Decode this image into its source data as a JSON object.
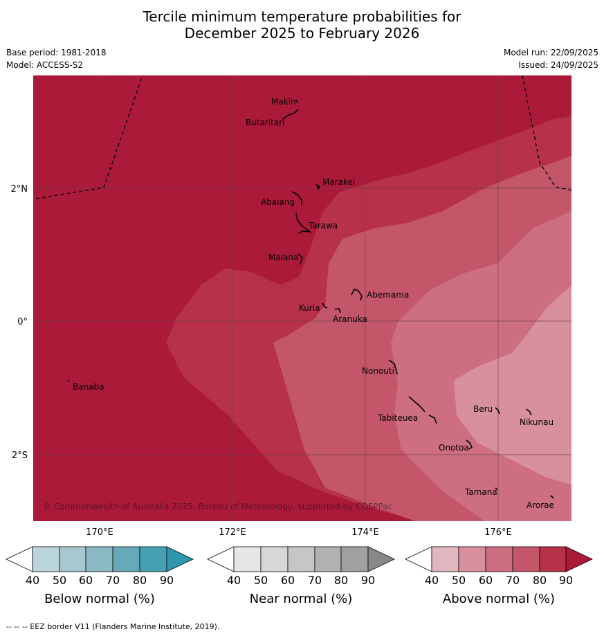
{
  "title": {
    "line1": "Tercile minimum temperature probabilities for",
    "line2": "December 2025 to February 2026"
  },
  "meta": {
    "base_period": "Base period: 1981-2018",
    "model": "Model: ACCESS-S2",
    "model_run": "Model run: 22/09/2025",
    "issued": "Issued: 24/09/2025"
  },
  "colors": {
    "above": [
      "#e2b6bf",
      "#d8909f",
      "#cd6f81",
      "#c35668",
      "#b63149",
      "#ac1a3a"
    ],
    "below": [
      "#bcd5dc",
      "#a7c8d0",
      "#8ab9c4",
      "#66a9b8",
      "#45a0b3",
      "#2d97ac"
    ],
    "near": [
      "#e6e6e6",
      "#d7d7d7",
      "#c6c6c6",
      "#b2b2b2",
      "#a0a0a0",
      "#888888"
    ],
    "land": "#000000",
    "grid": "#6b4045"
  },
  "map": {
    "lat_ticks": [
      "2°N",
      "0°",
      "2°S"
    ],
    "lon_ticks": [
      "170°E",
      "172°E",
      "174°E",
      "176°E"
    ],
    "places": [
      {
        "name": "Makin"
      },
      {
        "name": "Butaritari"
      },
      {
        "name": "Marakei"
      },
      {
        "name": "Abaiang"
      },
      {
        "name": "Tarawa"
      },
      {
        "name": "Maiana"
      },
      {
        "name": "Abemama"
      },
      {
        "name": "Kuria"
      },
      {
        "name": "Aranuka"
      },
      {
        "name": "Banaba"
      },
      {
        "name": "Nonouti"
      },
      {
        "name": "Tabiteuea"
      },
      {
        "name": "Beru"
      },
      {
        "name": "Nikunau"
      },
      {
        "name": "Onotoa"
      },
      {
        "name": "Tamana"
      },
      {
        "name": "Arorae"
      }
    ],
    "copyright": "© Commonwealth of Australia 2025, Bureau of Meteorology, supported by COSPPac"
  },
  "colorbars": [
    {
      "label": "Below normal (%)",
      "ticks": [
        "40",
        "50",
        "60",
        "70",
        "80",
        "90"
      ]
    },
    {
      "label": "Near normal (%)",
      "ticks": [
        "40",
        "50",
        "60",
        "70",
        "80",
        "90"
      ]
    },
    {
      "label": "Above normal (%)",
      "ticks": [
        "40",
        "50",
        "60",
        "70",
        "80",
        "90"
      ]
    }
  ],
  "footer": "--  --  -- EEZ border V11 (Flanders Marine Institute, 2019)."
}
